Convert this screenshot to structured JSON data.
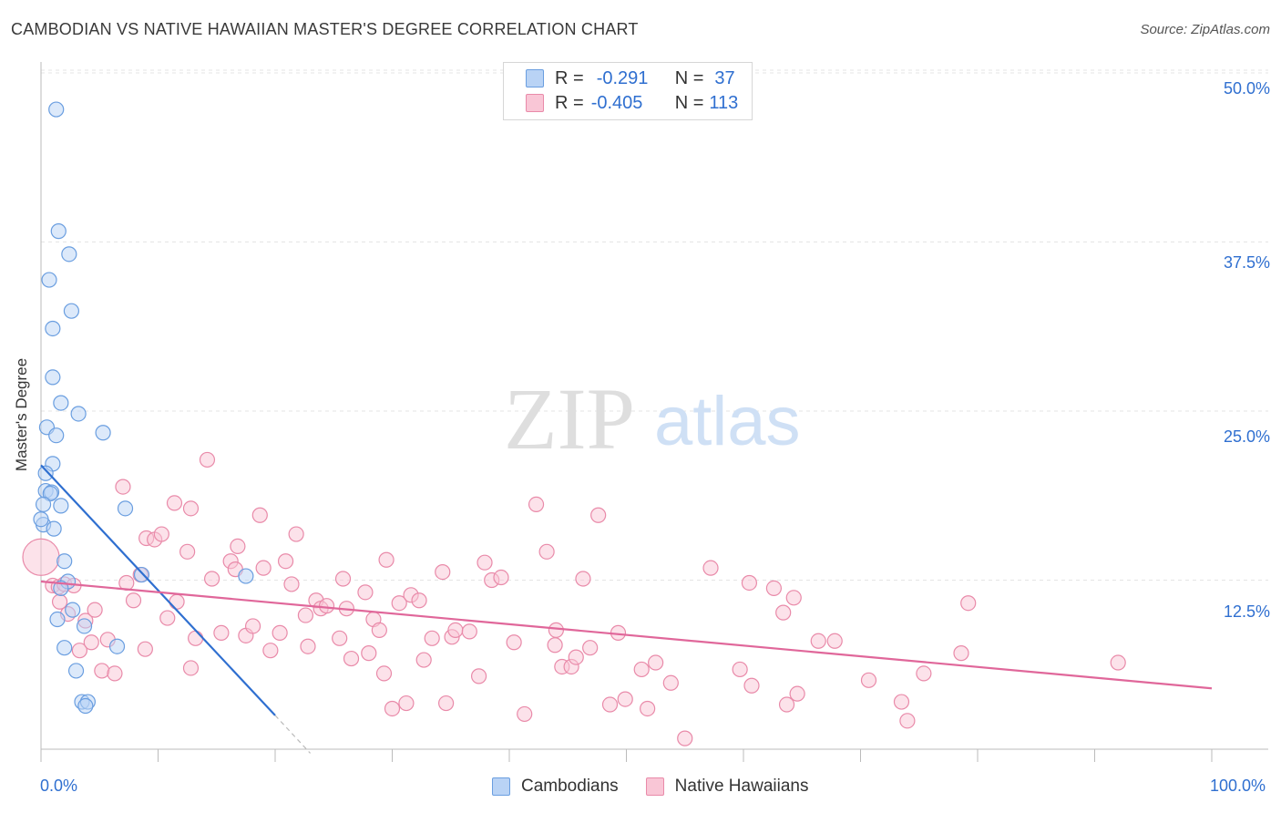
{
  "title": "CAMBODIAN VS NATIVE HAWAIIAN MASTER'S DEGREE CORRELATION CHART",
  "source": "Source: ZipAtlas.com",
  "watermark": {
    "zip": "ZIP",
    "atlas": "atlas"
  },
  "legend": {
    "rows": [
      {
        "r_label": "R =",
        "r_value": "-0.291",
        "n_label": "N =",
        "n_value": "37",
        "fill": "#b9d3f5",
        "stroke": "#6a9ee0"
      },
      {
        "r_label": "R =",
        "r_value": "-0.405",
        "n_label": "N =",
        "n_value": "113",
        "fill": "#f9c6d6",
        "stroke": "#e98aa9"
      }
    ]
  },
  "bottom_legend": [
    {
      "label": "Cambodians",
      "fill": "#b9d3f5",
      "stroke": "#6a9ee0"
    },
    {
      "label": "Native Hawaiians",
      "fill": "#f9c6d6",
      "stroke": "#e98aa9"
    }
  ],
  "chart_data": {
    "type": "scatter",
    "title": "CAMBODIAN VS NATIVE HAWAIIAN MASTER'S DEGREE CORRELATION CHART",
    "xlabel": "",
    "ylabel": "Master's Degree",
    "xlim": [
      0,
      100
    ],
    "ylim": [
      0,
      50
    ],
    "x_tick_labels": [
      "0.0%",
      "100.0%"
    ],
    "y_tick_values": [
      12.5,
      25.0,
      37.5,
      50.0
    ],
    "y_tick_labels": [
      "12.5%",
      "25.0%",
      "37.5%",
      "50.0%"
    ],
    "grid": true,
    "series": [
      {
        "name": "Cambodians",
        "color": "#6a9ee0",
        "fill": "#b9d3f5",
        "points": [
          [
            1.3,
            47.3
          ],
          [
            1.5,
            38.3
          ],
          [
            2.4,
            36.6
          ],
          [
            0.7,
            34.7
          ],
          [
            2.6,
            32.4
          ],
          [
            1.0,
            31.1
          ],
          [
            1.0,
            27.5
          ],
          [
            1.7,
            25.6
          ],
          [
            3.2,
            24.8
          ],
          [
            0.5,
            23.8
          ],
          [
            1.3,
            23.2
          ],
          [
            5.3,
            23.4
          ],
          [
            1.0,
            21.1
          ],
          [
            0.4,
            20.4
          ],
          [
            0.4,
            19.1
          ],
          [
            0.9,
            19.0
          ],
          [
            0.8,
            18.9
          ],
          [
            0.2,
            18.1
          ],
          [
            1.7,
            18.0
          ],
          [
            7.2,
            17.8
          ],
          [
            0.2,
            16.6
          ],
          [
            1.1,
            16.3
          ],
          [
            2.0,
            13.9
          ],
          [
            8.6,
            12.9
          ],
          [
            17.5,
            12.8
          ],
          [
            2.3,
            12.4
          ],
          [
            1.7,
            11.9
          ],
          [
            2.7,
            10.3
          ],
          [
            1.4,
            9.6
          ],
          [
            3.7,
            9.1
          ],
          [
            2.0,
            7.5
          ],
          [
            6.5,
            7.6
          ],
          [
            3.0,
            5.8
          ],
          [
            3.5,
            3.5
          ],
          [
            4.0,
            3.5
          ],
          [
            3.8,
            3.2
          ],
          [
            0.0,
            17.0
          ]
        ],
        "trend": {
          "x": [
            0.0,
            20.0
          ],
          "y": [
            21.0,
            2.5
          ],
          "dash_extension": {
            "x": [
              20.0,
              23.0
            ],
            "y": [
              2.5,
              -0.3
            ]
          }
        }
      },
      {
        "name": "Native Hawaiians",
        "color": "#e98aa9",
        "fill": "#f9c6d6",
        "points": [
          [
            0.0,
            14.2
          ],
          [
            1.0,
            12.1
          ],
          [
            1.5,
            12.0
          ],
          [
            2.0,
            12.2
          ],
          [
            2.8,
            12.1
          ],
          [
            1.6,
            10.9
          ],
          [
            2.3,
            10.0
          ],
          [
            3.8,
            9.5
          ],
          [
            4.6,
            10.3
          ],
          [
            3.3,
            7.3
          ],
          [
            4.3,
            7.9
          ],
          [
            5.7,
            8.1
          ],
          [
            5.2,
            5.8
          ],
          [
            6.3,
            5.6
          ],
          [
            7.0,
            19.4
          ],
          [
            7.3,
            12.3
          ],
          [
            7.9,
            11.0
          ],
          [
            8.5,
            12.9
          ],
          [
            9.0,
            15.6
          ],
          [
            9.7,
            15.5
          ],
          [
            10.3,
            15.9
          ],
          [
            8.9,
            7.4
          ],
          [
            10.8,
            9.7
          ],
          [
            11.6,
            10.9
          ],
          [
            11.4,
            18.2
          ],
          [
            12.5,
            14.6
          ],
          [
            12.8,
            17.8
          ],
          [
            12.8,
            6.0
          ],
          [
            13.2,
            8.2
          ],
          [
            14.2,
            21.4
          ],
          [
            14.6,
            12.6
          ],
          [
            15.4,
            8.6
          ],
          [
            16.2,
            13.9
          ],
          [
            16.6,
            13.3
          ],
          [
            16.8,
            15.0
          ],
          [
            17.5,
            8.4
          ],
          [
            18.1,
            9.1
          ],
          [
            18.7,
            17.3
          ],
          [
            19.0,
            13.4
          ],
          [
            19.6,
            7.3
          ],
          [
            20.4,
            8.6
          ],
          [
            20.9,
            13.9
          ],
          [
            21.4,
            12.2
          ],
          [
            21.8,
            15.9
          ],
          [
            22.6,
            9.9
          ],
          [
            22.8,
            7.6
          ],
          [
            23.5,
            11.0
          ],
          [
            23.9,
            10.4
          ],
          [
            24.4,
            10.6
          ],
          [
            25.5,
            8.2
          ],
          [
            25.8,
            12.6
          ],
          [
            26.1,
            10.4
          ],
          [
            26.5,
            6.7
          ],
          [
            27.7,
            11.6
          ],
          [
            28.0,
            7.1
          ],
          [
            28.4,
            9.6
          ],
          [
            28.9,
            8.8
          ],
          [
            29.3,
            5.6
          ],
          [
            29.5,
            14.0
          ],
          [
            30.0,
            3.0
          ],
          [
            30.6,
            10.8
          ],
          [
            31.2,
            3.4
          ],
          [
            31.6,
            11.4
          ],
          [
            32.3,
            11.0
          ],
          [
            32.7,
            6.6
          ],
          [
            33.4,
            8.2
          ],
          [
            34.3,
            13.1
          ],
          [
            34.6,
            3.4
          ],
          [
            35.1,
            8.3
          ],
          [
            35.4,
            8.8
          ],
          [
            36.6,
            8.7
          ],
          [
            37.4,
            5.4
          ],
          [
            37.9,
            13.8
          ],
          [
            38.5,
            12.5
          ],
          [
            39.3,
            12.7
          ],
          [
            40.4,
            7.9
          ],
          [
            41.3,
            2.6
          ],
          [
            42.3,
            18.1
          ],
          [
            43.2,
            14.6
          ],
          [
            43.9,
            7.7
          ],
          [
            44.0,
            8.8
          ],
          [
            44.5,
            6.1
          ],
          [
            45.3,
            6.1
          ],
          [
            45.7,
            6.8
          ],
          [
            46.3,
            12.6
          ],
          [
            46.9,
            7.5
          ],
          [
            47.6,
            17.3
          ],
          [
            48.6,
            3.3
          ],
          [
            49.3,
            8.6
          ],
          [
            49.9,
            3.7
          ],
          [
            51.3,
            5.9
          ],
          [
            52.5,
            6.4
          ],
          [
            53.8,
            4.9
          ],
          [
            55.0,
            0.8
          ],
          [
            57.2,
            13.4
          ],
          [
            59.7,
            5.9
          ],
          [
            60.5,
            12.3
          ],
          [
            60.7,
            4.7
          ],
          [
            62.6,
            11.9
          ],
          [
            63.4,
            10.1
          ],
          [
            63.7,
            3.3
          ],
          [
            64.3,
            11.2
          ],
          [
            64.6,
            4.1
          ],
          [
            66.4,
            8.0
          ],
          [
            67.8,
            8.0
          ],
          [
            70.7,
            5.1
          ],
          [
            73.5,
            3.5
          ],
          [
            74.0,
            2.1
          ],
          [
            75.4,
            5.6
          ],
          [
            78.6,
            7.1
          ],
          [
            79.2,
            10.8
          ],
          [
            92.0,
            6.4
          ],
          [
            51.8,
            3.0
          ]
        ],
        "trend": {
          "x": [
            0.0,
            100.0
          ],
          "y": [
            12.4,
            4.5
          ]
        }
      }
    ]
  }
}
